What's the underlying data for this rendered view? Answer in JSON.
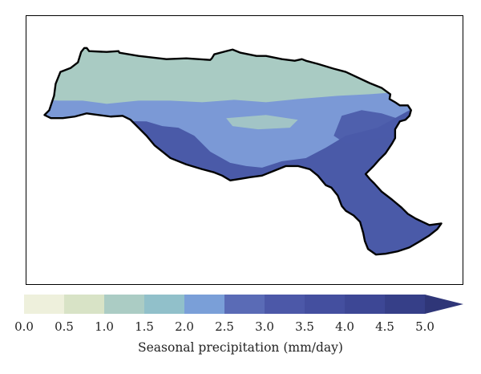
{
  "map": {
    "region_fill_colors": {
      "north_band": "#a9cbc3",
      "middle_band": "#7b99d6",
      "south_band": "#4a5aa8",
      "outline": "#000000"
    }
  },
  "colorbar": {
    "bins": [
      {
        "from": 0.0,
        "to": 0.5,
        "color": "#eef0dc"
      },
      {
        "from": 0.5,
        "to": 1.0,
        "color": "#d8e3c6"
      },
      {
        "from": 1.0,
        "to": 1.5,
        "color": "#abccc4"
      },
      {
        "from": 1.5,
        "to": 2.0,
        "color": "#91c0ca"
      },
      {
        "from": 2.0,
        "to": 2.5,
        "color": "#7a9fd8"
      },
      {
        "from": 2.5,
        "to": 3.0,
        "color": "#5a6bb6"
      },
      {
        "from": 3.0,
        "to": 3.5,
        "color": "#4c58a8"
      },
      {
        "from": 3.5,
        "to": 4.0,
        "color": "#444f9f"
      },
      {
        "from": 4.0,
        "to": 4.5,
        "color": "#3d4795"
      },
      {
        "from": 4.5,
        "to": 5.0,
        "color": "#363f88"
      }
    ],
    "extend_color": "#2f3678",
    "ticks": [
      "0.0",
      "0.5",
      "1.0",
      "1.5",
      "2.0",
      "2.5",
      "3.0",
      "3.5",
      "4.0",
      "4.5",
      "5.0"
    ],
    "label": "Seasonal precipitation (mm/day)"
  }
}
